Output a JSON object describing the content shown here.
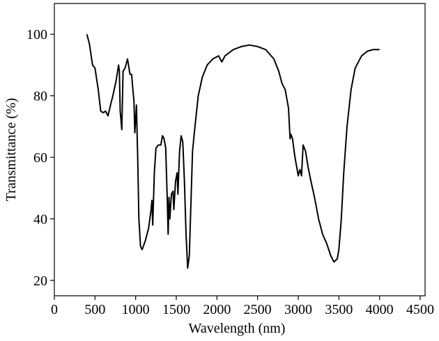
{
  "chart_data": {
    "type": "line",
    "x_label": "Wavelength (nm)",
    "y_label": "Transmittance (%)",
    "color": "#000000",
    "x": [
      400,
      430,
      470,
      500,
      540,
      570,
      600,
      630,
      660,
      700,
      720,
      760,
      790,
      800,
      810,
      830,
      845,
      870,
      900,
      930,
      950,
      980,
      990,
      1010,
      1025,
      1040,
      1060,
      1080,
      1120,
      1160,
      1190,
      1200,
      1210,
      1230,
      1250,
      1280,
      1310,
      1330,
      1350,
      1370,
      1390,
      1400,
      1410,
      1420,
      1440,
      1460,
      1470,
      1490,
      1510,
      1520,
      1540,
      1560,
      1580,
      1600,
      1620,
      1640,
      1660,
      1680,
      1700,
      1730,
      1770,
      1820,
      1880,
      1950,
      2020,
      2060,
      2100,
      2200,
      2300,
      2400,
      2500,
      2600,
      2700,
      2760,
      2800,
      2840,
      2880,
      2900,
      2910,
      2930,
      2960,
      2980,
      3000,
      3020,
      3040,
      3060,
      3090,
      3120,
      3150,
      3200,
      3250,
      3300,
      3350,
      3400,
      3440,
      3480,
      3500,
      3530,
      3560,
      3600,
      3650,
      3700,
      3780,
      3850,
      3920,
      4000
    ],
    "values": [
      100,
      97,
      90,
      89,
      82,
      75,
      74.5,
      75,
      73.5,
      78,
      80,
      85,
      90,
      88,
      75,
      69,
      88,
      89,
      92,
      87,
      87,
      78,
      68,
      77,
      60,
      40,
      31,
      30,
      33,
      37,
      43,
      46,
      38,
      55,
      63,
      64,
      64,
      67,
      66,
      63,
      45,
      35,
      47,
      40,
      48,
      49,
      43,
      52,
      55,
      48,
      62,
      67,
      65,
      52,
      35,
      24,
      28,
      45,
      62,
      70,
      80,
      86,
      90,
      92,
      93,
      91,
      93,
      95,
      96,
      96.5,
      96,
      95,
      92,
      88,
      84,
      82,
      76,
      66,
      67.5,
      66,
      60,
      57,
      54,
      56,
      54,
      64,
      62,
      57,
      53,
      47,
      40,
      35,
      32,
      28,
      26,
      27,
      30,
      40,
      55,
      70,
      82,
      89,
      93,
      94.5,
      95,
      95
    ],
    "xlim": [
      0,
      4500
    ],
    "xticks": [
      0,
      500,
      1000,
      1500,
      2000,
      2500,
      3000,
      3500,
      4000,
      4500
    ],
    "ylim": [
      15,
      110
    ],
    "yticks": [
      20,
      40,
      60,
      80,
      100
    ]
  }
}
